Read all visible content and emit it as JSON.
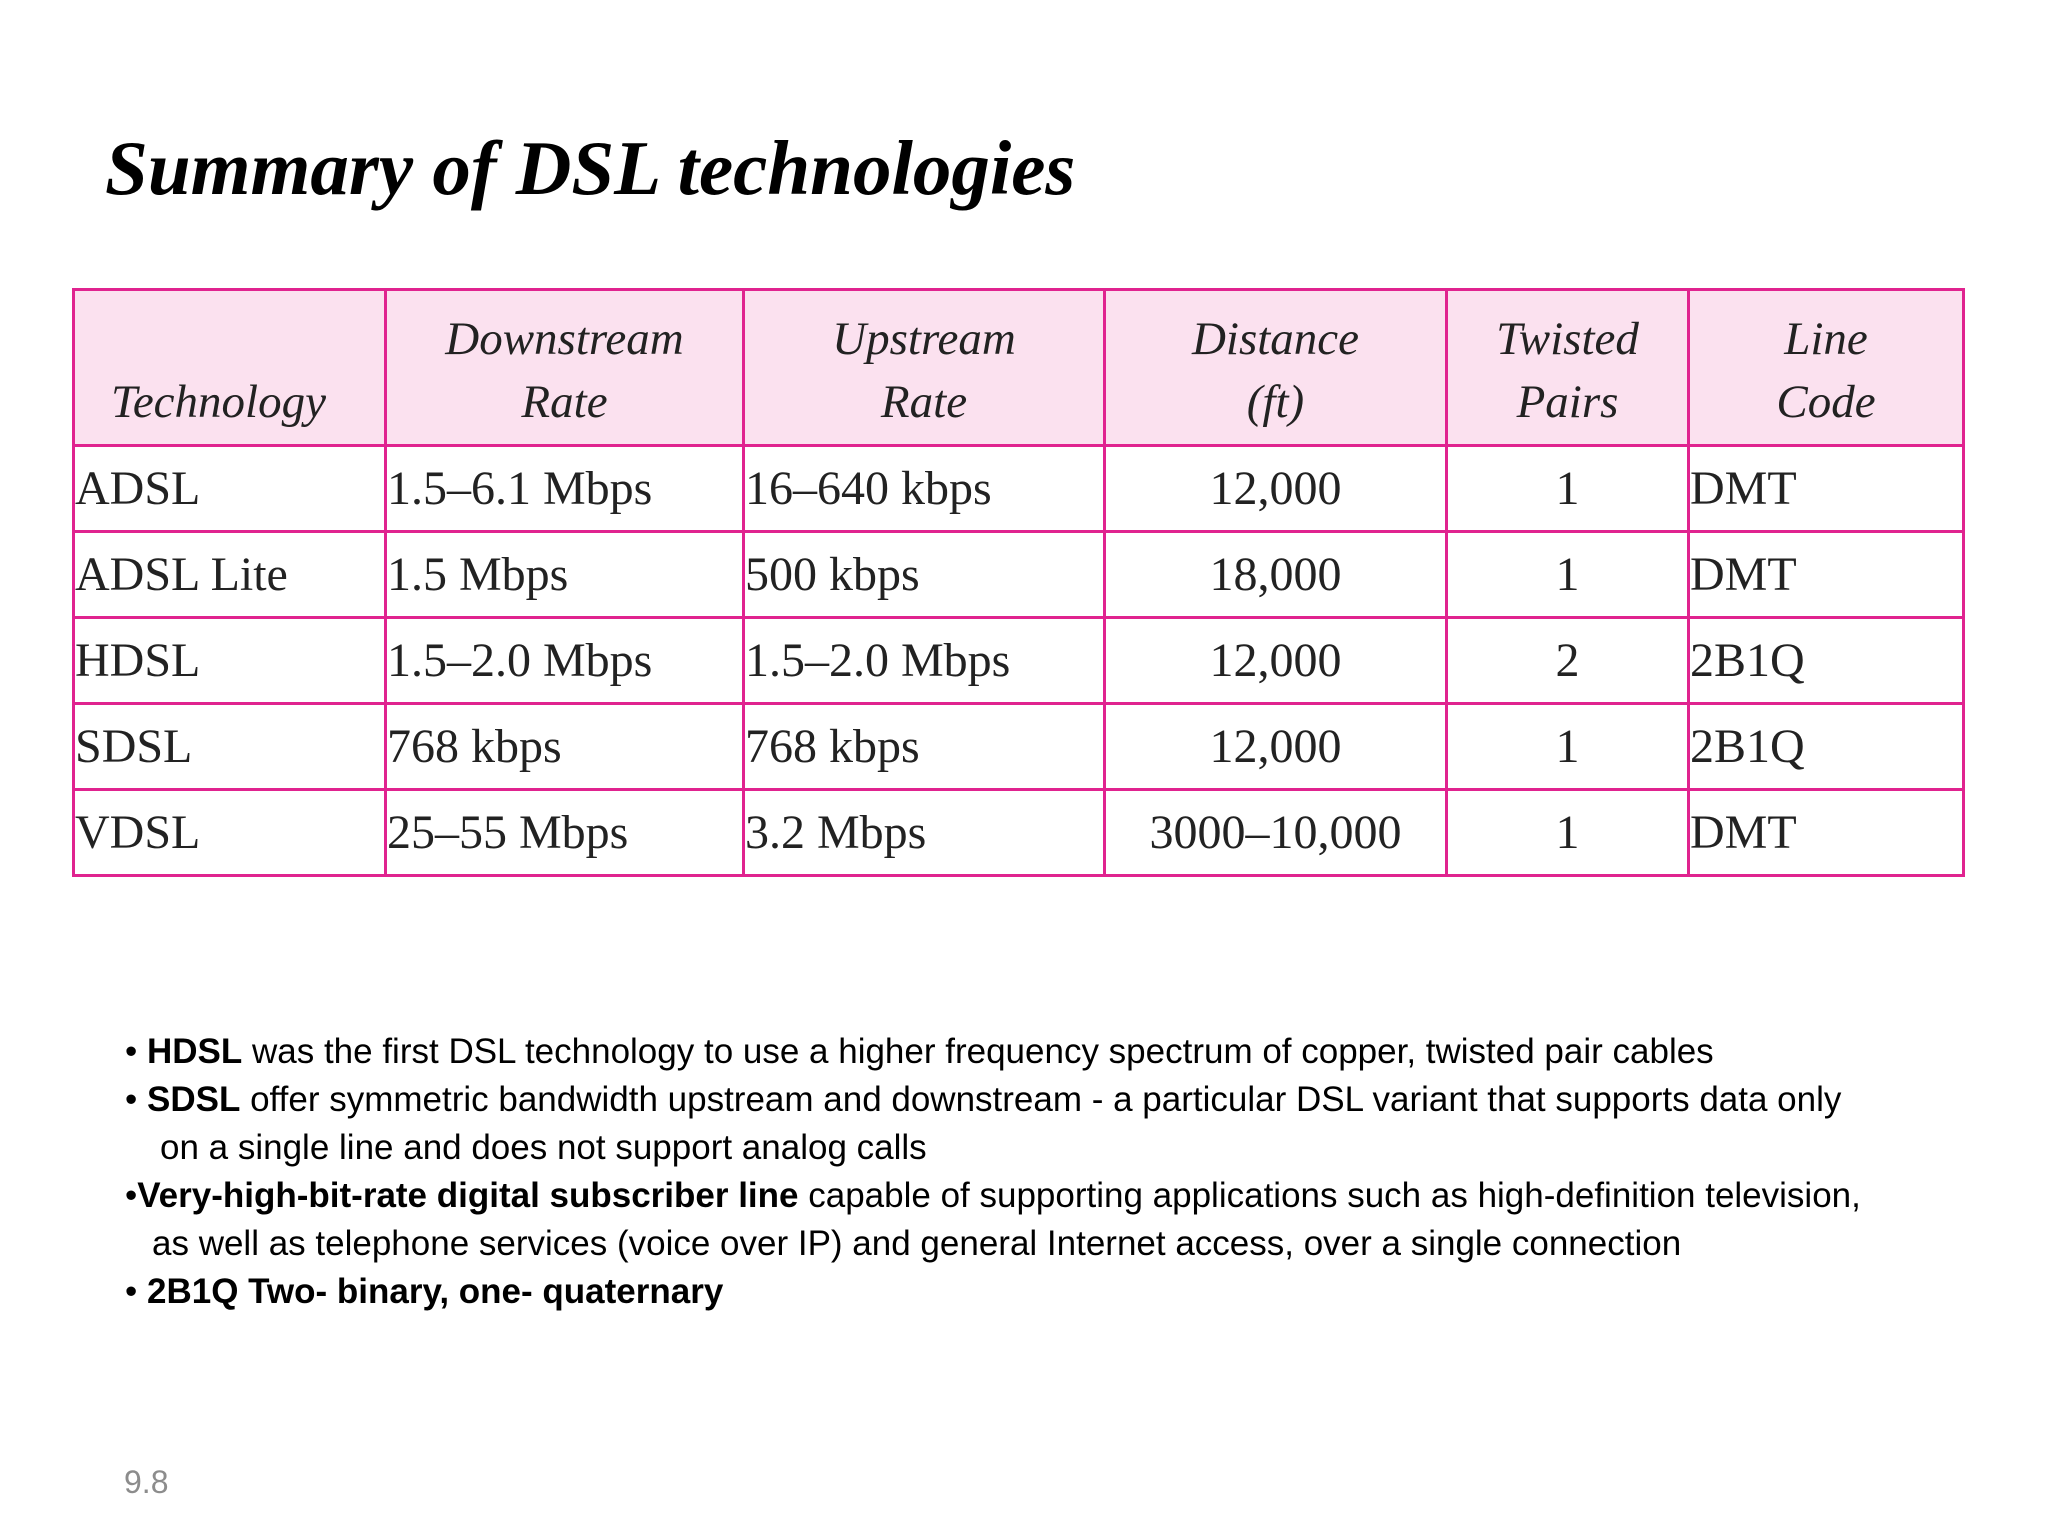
{
  "slide": {
    "title": "Summary of DSL technologies",
    "page_number": "9.8"
  },
  "table": {
    "headers": [
      {
        "line1": "",
        "line2": "Technology"
      },
      {
        "line1": "Downstream",
        "line2": "Rate"
      },
      {
        "line1": "Upstream",
        "line2": "Rate"
      },
      {
        "line1": "Distance",
        "line2": "(ft)"
      },
      {
        "line1": "Twisted",
        "line2": "Pairs"
      },
      {
        "line1": "Line",
        "line2": "Code"
      }
    ],
    "rows": [
      [
        "ADSL",
        "1.5–6.1 Mbps",
        "16–640 kbps",
        "12,000",
        "1",
        "DMT"
      ],
      [
        "ADSL Lite",
        "1.5 Mbps",
        "500 kbps",
        "18,000",
        "1",
        "DMT"
      ],
      [
        "HDSL",
        "1.5–2.0 Mbps",
        "1.5–2.0 Mbps",
        "12,000",
        "2",
        "2B1Q"
      ],
      [
        "SDSL",
        "768 kbps",
        "768 kbps",
        "12,000",
        "1",
        "2B1Q"
      ],
      [
        "VDSL",
        "25–55 Mbps",
        "3.2 Mbps",
        "3000–10,000",
        "1",
        "DMT"
      ]
    ]
  },
  "notes": {
    "hdsl": {
      "bullet": "• ",
      "term": "HDSL",
      "text": " was the first DSL technology to use a higher frequency spectrum of copper, twisted pair cables"
    },
    "sdsl": {
      "bullet": "• ",
      "term": "SDSL",
      "text": " offer symmetric bandwidth upstream and downstream - a particular DSL variant that supports data only",
      "continuation": "on a single line and does not support analog calls"
    },
    "vdsl": {
      "bullet": "•",
      "term": "Very-high-bit-rate digital subscriber line",
      "text": " capable of supporting applications such as high-definition television,",
      "continuation": "as well as telephone services (voice over IP) and general Internet access, over a single connection"
    },
    "twob1q": {
      "bullet": "• ",
      "term": "2B1Q Two- binary, one- quaternary"
    }
  },
  "colors": {
    "table_border": "#e0238f",
    "header_background": "#fbe1ef",
    "page_number": "#8c8c8c"
  }
}
